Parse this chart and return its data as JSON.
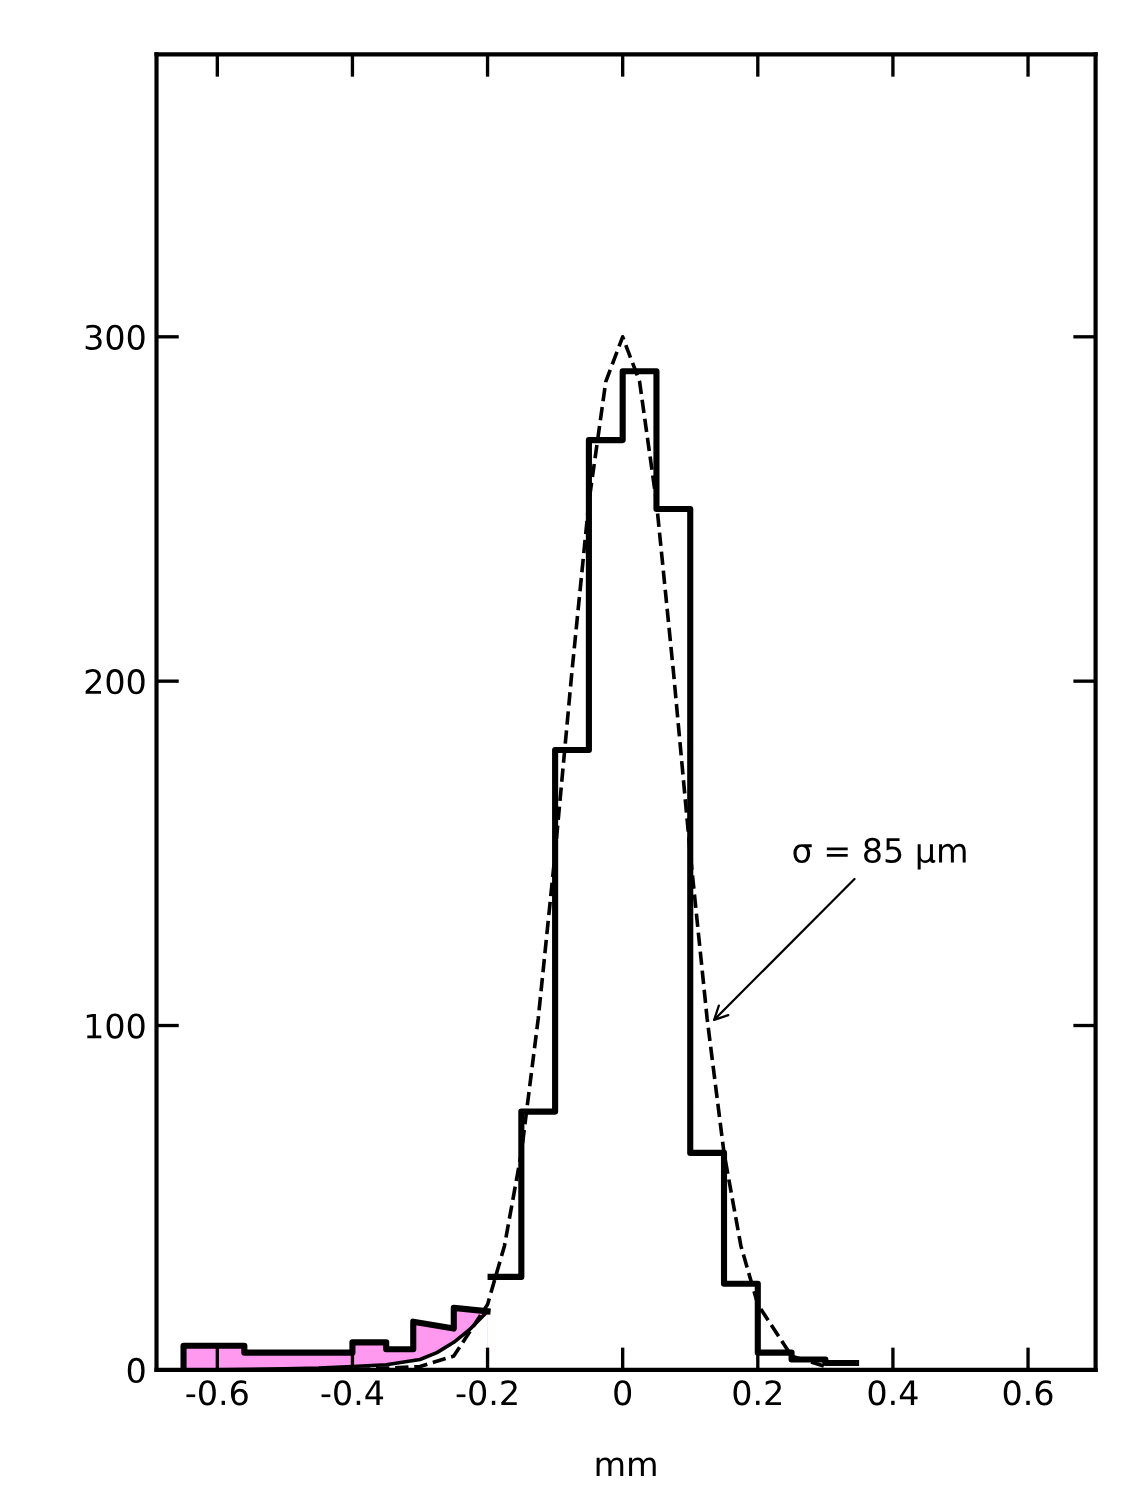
{
  "chart_data": {
    "type": "histogram",
    "xlabel": "mm",
    "bins": [
      -0.2,
      -0.15,
      -0.1,
      -0.05,
      0,
      0.05,
      0.1,
      0.15,
      0.2,
      0.25,
      0.3,
      0.35
    ],
    "values": [
      27,
      75,
      180,
      270,
      290,
      250,
      63,
      25,
      5,
      3,
      2
    ],
    "color": "#000000",
    "series": [
      {
        "type": "area",
        "color": "#ff99f0",
        "x": [
          -0.65,
          -0.65,
          -0.56,
          -0.56,
          -0.4,
          -0.4,
          -0.35,
          -0.35,
          -0.31,
          -0.31,
          -0.25,
          -0.25,
          -0.2
        ],
        "values": [
          0,
          7,
          7,
          5,
          5,
          8,
          8,
          6,
          6,
          14,
          12,
          18,
          17
        ]
      },
      {
        "type": "line",
        "color": "#000000",
        "line_style": "solid",
        "x": [
          -0.6,
          -0.5,
          -0.45,
          -0.4,
          -0.35,
          -0.3,
          -0.275,
          -0.25,
          -0.225,
          -0.2
        ],
        "values": [
          0,
          0.3,
          0.5,
          1,
          1.5,
          3,
          5,
          8,
          12,
          17
        ]
      },
      {
        "type": "line",
        "color": "#000000",
        "line_style": "dashed",
        "x": [
          -0.45,
          -0.4,
          -0.35,
          -0.3,
          -0.25,
          -0.2,
          -0.175,
          -0.15,
          -0.125,
          -0.1,
          -0.075,
          -0.05,
          -0.025,
          0,
          0.025,
          0.05,
          0.075,
          0.1,
          0.125,
          0.15,
          0.175,
          0.2,
          0.25,
          0.3
        ],
        "values": [
          0,
          0,
          0.5,
          1,
          4,
          19,
          36,
          63,
          102,
          150,
          203,
          252,
          287,
          300,
          287,
          252,
          203,
          150,
          102,
          63,
          36,
          19,
          4,
          1
        ]
      }
    ],
    "annotations": [
      {
        "text": "σ = 85 μm",
        "x": 0.127,
        "y": 100
      }
    ],
    "xlim": [
      -0.69,
      0.7
    ],
    "ylim": [
      0,
      382
    ],
    "xticks": [
      {
        "value": -0.6,
        "label": "-0.6"
      },
      {
        "value": -0.4,
        "label": "-0.4"
      },
      {
        "value": -0.2,
        "label": "-0.2"
      },
      0,
      {
        "value": 0.2,
        "label": "0.2"
      },
      {
        "value": 0.4,
        "label": "0.4"
      },
      {
        "value": 0.6,
        "label": "0.6"
      }
    ],
    "yticks": [
      0,
      100,
      200,
      300
    ],
    "grid": false
  }
}
